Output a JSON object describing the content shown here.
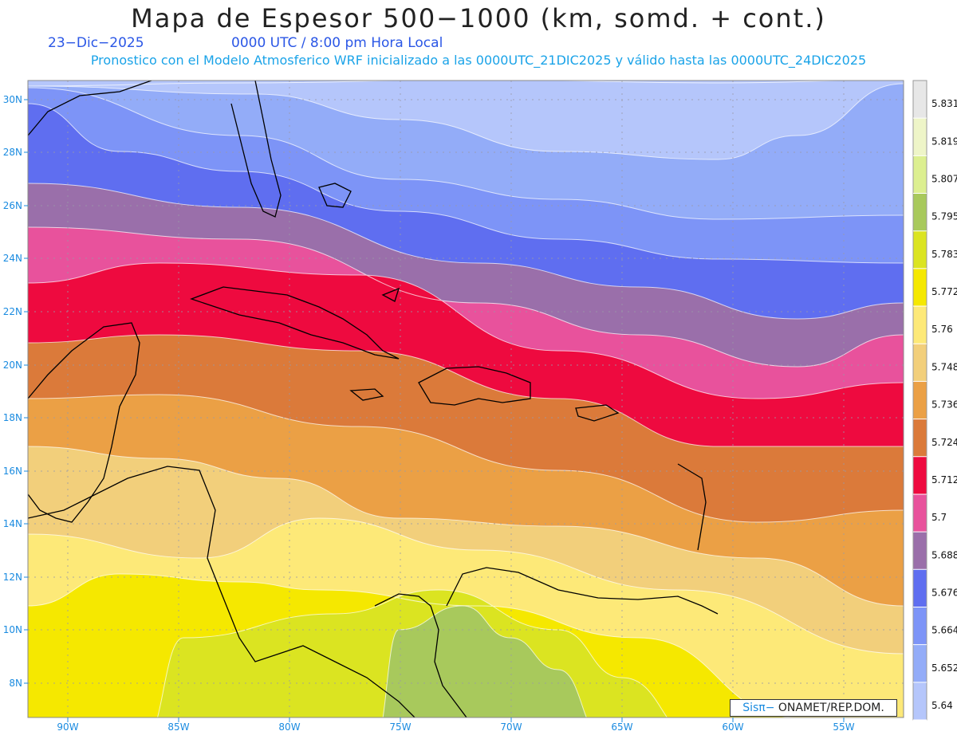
{
  "header": {
    "title": "Mapa de Espesor 500−1000 (km, somd. + cont.)",
    "date": "23−Dic−2025",
    "time": "0000 UTC / 8:00 pm Hora Local",
    "model_line": "Pronostico con el Modelo Atmosferico WRF inicializado a las 0000UTC_21DIC2025 y válido hasta las  0000UTC_24DIC2025"
  },
  "axes": {
    "lat_labels": [
      "30N",
      "28N",
      "26N",
      "24N",
      "22N",
      "20N",
      "18N",
      "16N",
      "14N",
      "12N",
      "10N",
      "8N"
    ],
    "lon_labels": [
      "90W",
      "85W",
      "80W",
      "75W",
      "70W",
      "65W",
      "60W",
      "55W"
    ]
  },
  "colorbar": {
    "labels": [
      "5.831",
      "5.819",
      "5.807",
      "5.795",
      "5.783",
      "5.772",
      "5.76",
      "5.748",
      "5.736",
      "5.724",
      "5.712",
      "5.7",
      "5.688",
      "5.676",
      "5.664",
      "5.652",
      "5.64"
    ],
    "colors": [
      "#e7e7e7",
      "#eef5c8",
      "#dcef90",
      "#a8c95c",
      "#dbe421",
      "#f5e800",
      "#fde978",
      "#f2cf7b",
      "#eba045",
      "#db7a3a",
      "#ee0a3f",
      "#e8529c",
      "#9a6faa",
      "#5f6ef0",
      "#7d94f7",
      "#93acf8",
      "#b5c6fb"
    ]
  },
  "bands": {
    "colors": [
      "#b5c6fb",
      "#93acf8",
      "#7d94f7",
      "#5f6ef0",
      "#9a6faa",
      "#e8529c",
      "#ee0a3f",
      "#db7a3a",
      "#eba045",
      "#f2cf7b",
      "#fde978",
      "#f5e800",
      "#dbe421",
      "#a8c95c"
    ]
  },
  "credit": {
    "brand": "Sisπ−",
    "org": "ONAMET/REP.DOM."
  }
}
